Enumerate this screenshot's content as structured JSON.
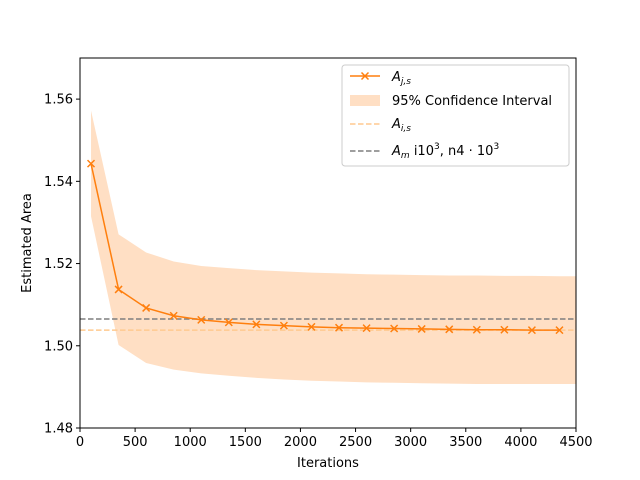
{
  "chart_data": {
    "type": "line",
    "xlabel": "Iterations",
    "ylabel": "Estimated Area",
    "xlim": [
      0,
      4500
    ],
    "ylim": [
      1.48,
      1.57
    ],
    "xticks": [
      0,
      500,
      1000,
      1500,
      2000,
      2500,
      3000,
      3500,
      4000,
      4500
    ],
    "yticks": [
      1.48,
      1.5,
      1.52,
      1.54,
      1.56
    ],
    "xtick_labels": [
      "0",
      "500",
      "1000",
      "1500",
      "2000",
      "2500",
      "3000",
      "3500",
      "4000",
      "4500"
    ],
    "ytick_labels": [
      "1.48",
      "1.50",
      "1.52",
      "1.54",
      "1.56"
    ],
    "grid": false,
    "legend_position": "top-right",
    "colors": {
      "series": "#ff7f0e",
      "band": "#ffdfc4",
      "ref_light": "#ffc98f",
      "ref_dark": "#7f7f7f"
    },
    "x": [
      100,
      350,
      600,
      850,
      1100,
      1350,
      1600,
      1850,
      2100,
      2350,
      2600,
      2850,
      3100,
      3350,
      3600,
      3850,
      4100,
      4350
    ],
    "series": [
      {
        "name_main": "A",
        "name_sub": "j,s",
        "values": [
          1.5443,
          1.5137,
          1.5092,
          1.5073,
          1.5063,
          1.5057,
          1.5052,
          1.5049,
          1.5046,
          1.5044,
          1.5043,
          1.5042,
          1.5041,
          1.504,
          1.5039,
          1.5039,
          1.5038,
          1.5038
        ]
      }
    ],
    "confidence_interval": {
      "name": "95% Confidence Interval",
      "x": [
        100,
        350,
        600,
        850,
        1100,
        1350,
        1600,
        1850,
        2100,
        2350,
        2600,
        2850,
        3100,
        3350,
        3600,
        3850,
        4100,
        4350,
        4500
      ],
      "lower": [
        1.5315,
        1.5002,
        1.4958,
        1.4942,
        1.4933,
        1.4927,
        1.4922,
        1.4918,
        1.4915,
        1.4913,
        1.4911,
        1.491,
        1.4909,
        1.4908,
        1.4907,
        1.4907,
        1.4907,
        1.4907,
        1.4907
      ],
      "upper": [
        1.5572,
        1.5271,
        1.5227,
        1.5205,
        1.5194,
        1.5189,
        1.5184,
        1.5181,
        1.5178,
        1.5176,
        1.5174,
        1.5173,
        1.5172,
        1.5171,
        1.5171,
        1.517,
        1.517,
        1.5169,
        1.5169
      ]
    },
    "reference_lines": [
      {
        "name_main": "A",
        "name_sub": "i,s",
        "value": 1.5038,
        "style": "light"
      },
      {
        "name_main": "A",
        "name_sub": "m",
        "name_rest": " i10",
        "name_sup": "3",
        "name_rest2": ", n4 · 10",
        "name_sup2": "3",
        "value": 1.5065,
        "style": "dark"
      }
    ]
  }
}
